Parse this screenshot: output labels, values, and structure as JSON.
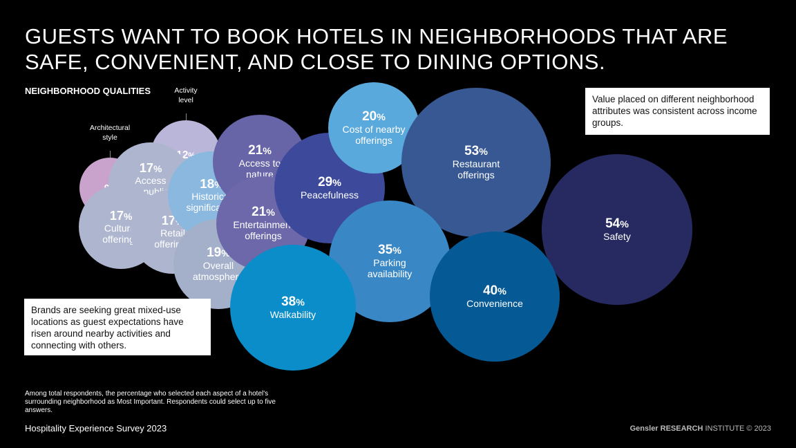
{
  "title": "GUESTS WANT TO BOOK HOTELS IN NEIGHBORHOODS THAT ARE SAFE, CONVENIENT, AND CLOSE TO DINING OPTIONS.",
  "subtitle": "NEIGHBORHOOD QUALITIES",
  "callout_top": "Value placed on different neighborhood attributes was consistent across income groups.",
  "callout_bottom": "Brands are seeking great mixed-use locations as guest expectations have risen around nearby activities and connecting with others.",
  "note": "Among total respondents, the percentage who selected each aspect of a hotel's surrounding neighborhood as Most Important. Respondents could select up to five answers.",
  "survey": "Hospitality Experience Survey 2023",
  "brand": {
    "gensler": "Gensler",
    "research": "RESEARCH",
    "institute": "INSTITUTE",
    "copyright": "© 2023"
  },
  "chart_data": {
    "type": "bubble",
    "title": "NEIGHBORHOOD QUALITIES",
    "unit": "%",
    "items": [
      {
        "label": "Architectural\nstyle",
        "value": 9,
        "color": "#c9a3cc",
        "external_label": true
      },
      {
        "label": "Activity\nlevel",
        "value": 12,
        "color": "#b9b6da",
        "external_label": true
      },
      {
        "label": "Access\nto public\ntransit",
        "value": 17,
        "color": "#aeb6cf"
      },
      {
        "label": "Cultural\nofferings",
        "value": 17,
        "color": "#aeb6cf"
      },
      {
        "label": "Retail\nofferings",
        "value": 17,
        "color": "#aeb6cf"
      },
      {
        "label": "Historical\nsignificance",
        "value": 18,
        "color": "#8ab8de"
      },
      {
        "label": "Overall\natmosphere",
        "value": 19,
        "color": "#a4b0ca"
      },
      {
        "label": "Access to\nnature",
        "value": 21,
        "color": "#6764a8"
      },
      {
        "label": "Entertainment\nofferings",
        "value": 21,
        "color": "#6c68aa"
      },
      {
        "label": "Peacefulness",
        "value": 29,
        "color": "#3d4a9b"
      },
      {
        "label": "Cost of nearby\nofferings",
        "value": 20,
        "color": "#5aa9dc"
      },
      {
        "label": "Restaurant\nofferings",
        "value": 53,
        "color": "#375893"
      },
      {
        "label": "Safety",
        "value": 54,
        "color": "#262a60"
      },
      {
        "label": "Parking\navailability",
        "value": 35,
        "color": "#3a87c5"
      },
      {
        "label": "Convenience",
        "value": 40,
        "color": "#055a96"
      },
      {
        "label": "Walkability",
        "value": 38,
        "color": "#0a8dc9"
      }
    ]
  }
}
